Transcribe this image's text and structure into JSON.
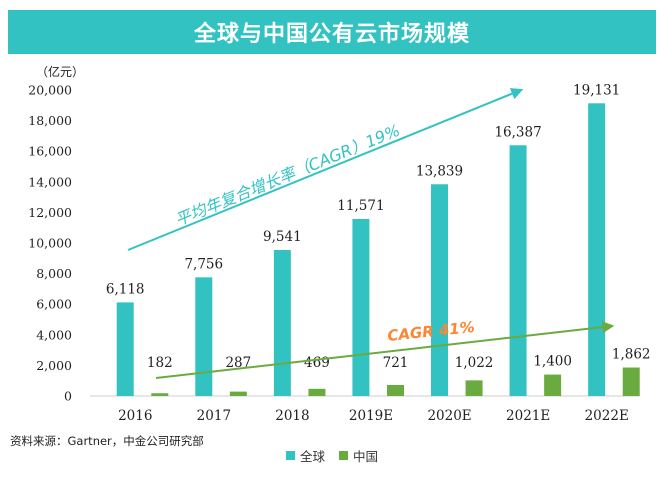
{
  "chart_data": {
    "type": "bar",
    "title": "全球与中国公有云市场规模",
    "ylabel": "（亿元）",
    "ylim": [
      0,
      20000
    ],
    "yticks": [
      "0",
      "2,000",
      "4,000",
      "6,000",
      "8,000",
      "10,000",
      "12,000",
      "14,000",
      "16,000",
      "18,000",
      "20,000"
    ],
    "categories": [
      "2016",
      "2017",
      "2018",
      "2019E",
      "2020E",
      "2021E",
      "2022E"
    ],
    "series": [
      {
        "name": "全球",
        "color": "#33c2c2",
        "values": [
          6118,
          7756,
          9541,
          11571,
          13839,
          16387,
          19131
        ],
        "labels": [
          "6,118",
          "7,756",
          "9,541",
          "11,571",
          "13,839",
          "16,387",
          "19,131"
        ]
      },
      {
        "name": "中国",
        "color": "#6aab3f",
        "values": [
          182,
          287,
          469,
          721,
          1022,
          1400,
          1862
        ],
        "labels": [
          "182",
          "287",
          "469",
          "721",
          "1,022",
          "1,400",
          "1,862"
        ]
      }
    ],
    "annotations": [
      {
        "text": "平均年复合增长率（CAGR）19%",
        "color": "#33c2c2"
      },
      {
        "text": "CAGR 41%",
        "color": "#ff8533"
      }
    ],
    "arrow_colors": {
      "global": "#33c2c2",
      "china": "#6aab3f"
    },
    "legend_position": "bottom",
    "grid": false,
    "source": "资料来源：Gartner，中金公司研究部"
  }
}
